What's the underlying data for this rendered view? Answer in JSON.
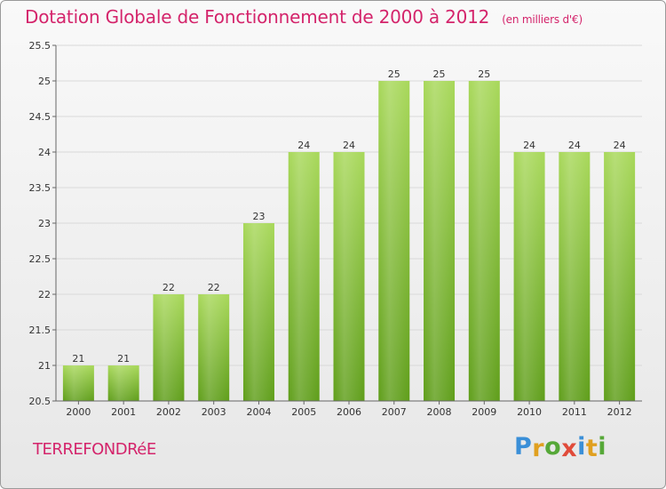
{
  "title": "Dotation Globale de Fonctionnement de 2000 à 2012",
  "unit_note": "(en milliers d'€)",
  "commune": "TERREFONDRéE",
  "logo": {
    "text": "Proxiti",
    "letters": [
      {
        "ch": "P",
        "color": "#3a8fd8"
      },
      {
        "ch": "r",
        "color": "#e0a020"
      },
      {
        "ch": "o",
        "color": "#56a838"
      },
      {
        "ch": "x",
        "color": "#e04b3a"
      },
      {
        "ch": "i",
        "color": "#3a8fd8"
      },
      {
        "ch": "t",
        "color": "#e0a020"
      },
      {
        "ch": "i",
        "color": "#56a838"
      }
    ]
  },
  "colors": {
    "title": "#d4246b",
    "bar_top": "#a8d85a",
    "bar_bottom": "#5f9e1a",
    "grid": "#d9d9d9",
    "axis": "#666666",
    "text": "#333333"
  },
  "chart_data": {
    "type": "bar",
    "title": "Dotation Globale de Fonctionnement de 2000 à 2012",
    "xlabel": "",
    "ylabel": "",
    "categories": [
      "2000",
      "2001",
      "2002",
      "2003",
      "2004",
      "2005",
      "2006",
      "2007",
      "2008",
      "2009",
      "2010",
      "2011",
      "2012"
    ],
    "values": [
      21,
      21,
      22,
      22,
      23,
      24,
      24,
      25,
      25,
      25,
      24,
      24,
      24
    ],
    "value_labels": [
      "21",
      "21",
      "22",
      "22",
      "23",
      "24",
      "24",
      "25",
      "25",
      "25",
      "24",
      "24",
      "24"
    ],
    "ylim": [
      20.5,
      25.5
    ],
    "yticks": [
      20.5,
      21,
      21.5,
      22,
      22.5,
      23,
      23.5,
      24,
      24.5,
      25,
      25.5
    ],
    "ytick_labels": [
      "20.5",
      "21",
      "21.5",
      "22",
      "22.5",
      "23",
      "23.5",
      "24",
      "24.5",
      "25",
      "25.5"
    ],
    "grid": true,
    "legend": "none"
  }
}
